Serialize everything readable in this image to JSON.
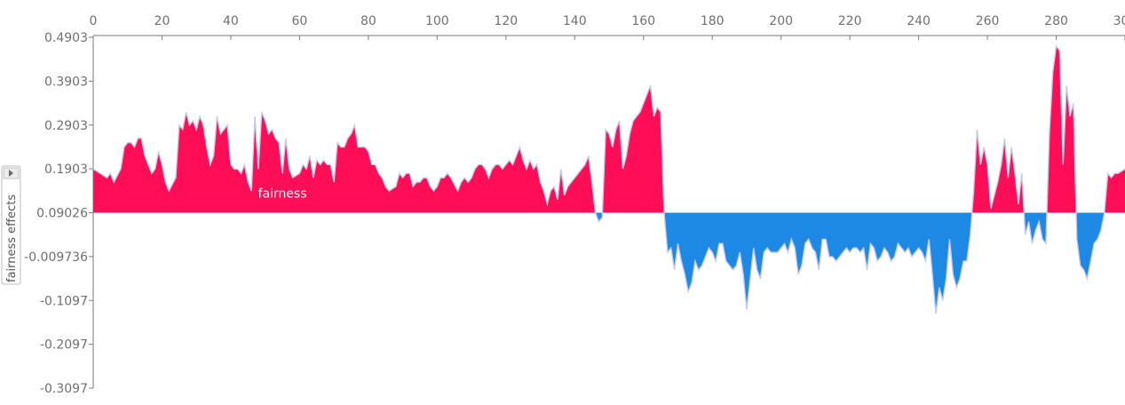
{
  "chart_data": {
    "type": "area",
    "ylabel": "fairness effects",
    "base_value": 0.09026,
    "xlim": [
      0,
      300
    ],
    "ylim": [
      -0.3097,
      0.4903
    ],
    "x_ticks": [
      0,
      20,
      40,
      60,
      80,
      100,
      120,
      140,
      160,
      180,
      200,
      220,
      240,
      260,
      280,
      300
    ],
    "x_tick_labels": [
      "0",
      "20",
      "40",
      "60",
      "80",
      "100",
      "120",
      "140",
      "160",
      "180",
      "200",
      "220",
      "240",
      "260",
      "280",
      "300"
    ],
    "y_ticks": [
      0.4903,
      0.3903,
      0.2903,
      0.1903,
      0.09026,
      -0.009736,
      -0.1097,
      -0.2097,
      -0.3097
    ],
    "y_tick_labels": [
      "0.4903",
      "0.3903",
      "0.2903",
      "0.1903",
      "0.09026",
      "-0.009736",
      "-0.1097",
      "-0.2097",
      "-0.3097"
    ],
    "series": [
      {
        "name": "fairness",
        "colors": {
          "positive": "#ff0d57",
          "negative": "#1e88e5",
          "outline": "#c7cbe8"
        },
        "points": [
          [
            0,
            0.19
          ],
          [
            2,
            0.18
          ],
          [
            4,
            0.17
          ],
          [
            5,
            0.18
          ],
          [
            6,
            0.16
          ],
          [
            8,
            0.19
          ],
          [
            9,
            0.24
          ],
          [
            10,
            0.25
          ],
          [
            11,
            0.25
          ],
          [
            12,
            0.24
          ],
          [
            13,
            0.26
          ],
          [
            14,
            0.26
          ],
          [
            15,
            0.22
          ],
          [
            16,
            0.2
          ],
          [
            17,
            0.18
          ],
          [
            18,
            0.19
          ],
          [
            19,
            0.23
          ],
          [
            20,
            0.2
          ],
          [
            21,
            0.16
          ],
          [
            22,
            0.14
          ],
          [
            24,
            0.17
          ],
          [
            25,
            0.29
          ],
          [
            26,
            0.28
          ],
          [
            27,
            0.32
          ],
          [
            28,
            0.29
          ],
          [
            29,
            0.3
          ],
          [
            30,
            0.28
          ],
          [
            31,
            0.31
          ],
          [
            32,
            0.29
          ],
          [
            33,
            0.24
          ],
          [
            34,
            0.2
          ],
          [
            35,
            0.22
          ],
          [
            36,
            0.31
          ],
          [
            37,
            0.27
          ],
          [
            38,
            0.28
          ],
          [
            39,
            0.29
          ],
          [
            40,
            0.2
          ],
          [
            41,
            0.19
          ],
          [
            42,
            0.19
          ],
          [
            43,
            0.18
          ],
          [
            44,
            0.2
          ],
          [
            45,
            0.16
          ],
          [
            46,
            0.14
          ],
          [
            47,
            0.31
          ],
          [
            48,
            0.19
          ],
          [
            49,
            0.32
          ],
          [
            50,
            0.3
          ],
          [
            51,
            0.27
          ],
          [
            52,
            0.28
          ],
          [
            53,
            0.26
          ],
          [
            54,
            0.25
          ],
          [
            55,
            0.18
          ],
          [
            56,
            0.26
          ],
          [
            57,
            0.19
          ],
          [
            58,
            0.17
          ],
          [
            60,
            0.18
          ],
          [
            61,
            0.2
          ],
          [
            62,
            0.19
          ],
          [
            63,
            0.22
          ],
          [
            64,
            0.17
          ],
          [
            65,
            0.21
          ],
          [
            66,
            0.2
          ],
          [
            67,
            0.21
          ],
          [
            68,
            0.2
          ],
          [
            69,
            0.2
          ],
          [
            70,
            0.16
          ],
          [
            71,
            0.25
          ],
          [
            72,
            0.24
          ],
          [
            73,
            0.24
          ],
          [
            74,
            0.26
          ],
          [
            75,
            0.27
          ],
          [
            76,
            0.29
          ],
          [
            77,
            0.24
          ],
          [
            78,
            0.24
          ],
          [
            79,
            0.24
          ],
          [
            80,
            0.23
          ],
          [
            81,
            0.2
          ],
          [
            82,
            0.2
          ],
          [
            83,
            0.18
          ],
          [
            84,
            0.17
          ],
          [
            85,
            0.15
          ],
          [
            86,
            0.14
          ],
          [
            88,
            0.15
          ],
          [
            89,
            0.18
          ],
          [
            90,
            0.17
          ],
          [
            91,
            0.18
          ],
          [
            92,
            0.18
          ],
          [
            93,
            0.15
          ],
          [
            94,
            0.16
          ],
          [
            95,
            0.16
          ],
          [
            96,
            0.17
          ],
          [
            97,
            0.17
          ],
          [
            98,
            0.15
          ],
          [
            99,
            0.14
          ],
          [
            100,
            0.15
          ],
          [
            101,
            0.17
          ],
          [
            102,
            0.17
          ],
          [
            103,
            0.18
          ],
          [
            104,
            0.17
          ],
          [
            106,
            0.14
          ],
          [
            107,
            0.16
          ],
          [
            108,
            0.17
          ],
          [
            109,
            0.16
          ],
          [
            110,
            0.17
          ],
          [
            111,
            0.19
          ],
          [
            112,
            0.2
          ],
          [
            113,
            0.2
          ],
          [
            114,
            0.19
          ],
          [
            115,
            0.17
          ],
          [
            116,
            0.19
          ],
          [
            117,
            0.2
          ],
          [
            118,
            0.2
          ],
          [
            119,
            0.19
          ],
          [
            120,
            0.2
          ],
          [
            121,
            0.21
          ],
          [
            122,
            0.2
          ],
          [
            123,
            0.22
          ],
          [
            124,
            0.24
          ],
          [
            125,
            0.21
          ],
          [
            126,
            0.19
          ],
          [
            127,
            0.21
          ],
          [
            128,
            0.19
          ],
          [
            129,
            0.2
          ],
          [
            130,
            0.16
          ],
          [
            131,
            0.14
          ],
          [
            132,
            0.11
          ],
          [
            133,
            0.14
          ],
          [
            134,
            0.15
          ],
          [
            135,
            0.12
          ],
          [
            136,
            0.19
          ],
          [
            137,
            0.13
          ],
          [
            138,
            0.15
          ],
          [
            139,
            0.16
          ],
          [
            141,
            0.18
          ],
          [
            142,
            0.19
          ],
          [
            143,
            0.2
          ],
          [
            144,
            0.22
          ],
          [
            145,
            0.16
          ],
          [
            146,
            0.09
          ],
          [
            147,
            0.07
          ],
          [
            148,
            0.08
          ],
          [
            149,
            0.28
          ],
          [
            150,
            0.27
          ],
          [
            151,
            0.24
          ],
          [
            152,
            0.28
          ],
          [
            153,
            0.3
          ],
          [
            154,
            0.19
          ],
          [
            155,
            0.22
          ],
          [
            156,
            0.27
          ],
          [
            157,
            0.3
          ],
          [
            158,
            0.31
          ],
          [
            159,
            0.32
          ],
          [
            160,
            0.34
          ],
          [
            161,
            0.36
          ],
          [
            162,
            0.38
          ],
          [
            163,
            0.31
          ],
          [
            164,
            0.33
          ],
          [
            165,
            0.32
          ],
          [
            166,
            0.09
          ],
          [
            167,
            0.0
          ],
          [
            168,
            0.01
          ],
          [
            169,
            -0.04
          ],
          [
            170,
            0.02
          ],
          [
            171,
            -0.02
          ],
          [
            172,
            -0.05
          ],
          [
            173,
            -0.09
          ],
          [
            174,
            -0.07
          ],
          [
            175,
            -0.02
          ],
          [
            176,
            -0.04
          ],
          [
            177,
            -0.03
          ],
          [
            178,
            -0.01
          ],
          [
            179,
            0.01
          ],
          [
            180,
            0.0
          ],
          [
            181,
            -0.02
          ],
          [
            182,
            0.02
          ],
          [
            183,
            0.02
          ],
          [
            184,
            -0.02
          ],
          [
            185,
            -0.03
          ],
          [
            186,
            -0.04
          ],
          [
            187,
            -0.03
          ],
          [
            188,
            0.0
          ],
          [
            189,
            -0.05
          ],
          [
            190,
            -0.13
          ],
          [
            191,
            -0.06
          ],
          [
            192,
            0.01
          ],
          [
            193,
            -0.04
          ],
          [
            194,
            -0.06
          ],
          [
            195,
            0.0
          ],
          [
            196,
            0.01
          ],
          [
            197,
            0.0
          ],
          [
            198,
            0.0
          ],
          [
            199,
            0.0
          ],
          [
            200,
            0.01
          ],
          [
            201,
            0.02
          ],
          [
            202,
            0.0
          ],
          [
            203,
            0.03
          ],
          [
            204,
            0.01
          ],
          [
            205,
            -0.05
          ],
          [
            206,
            -0.03
          ],
          [
            207,
            0.02
          ],
          [
            208,
            0.03
          ],
          [
            209,
            0.01
          ],
          [
            210,
            0.0
          ],
          [
            211,
            -0.04
          ],
          [
            212,
            0.03
          ],
          [
            213,
            0.03
          ],
          [
            214,
            -0.01
          ],
          [
            215,
            -0.01
          ],
          [
            216,
            -0.02
          ],
          [
            217,
            -0.01
          ],
          [
            218,
            0.0
          ],
          [
            219,
            0.01
          ],
          [
            220,
            0.0
          ],
          [
            221,
            0.01
          ],
          [
            222,
            0.01
          ],
          [
            223,
            0.0
          ],
          [
            224,
            0.01
          ],
          [
            225,
            -0.04
          ],
          [
            226,
            0.02
          ],
          [
            227,
            0.01
          ],
          [
            228,
            -0.02
          ],
          [
            229,
            -0.01
          ],
          [
            230,
            0.01
          ],
          [
            231,
            0.0
          ],
          [
            232,
            -0.02
          ],
          [
            233,
            -0.01
          ],
          [
            234,
            0.02
          ],
          [
            235,
            0.01
          ],
          [
            236,
            0.0
          ],
          [
            237,
            0.01
          ],
          [
            238,
            -0.01
          ],
          [
            239,
            0.0
          ],
          [
            240,
            0.01
          ],
          [
            241,
            0.0
          ],
          [
            242,
            -0.02
          ],
          [
            243,
            0.03
          ],
          [
            244,
            -0.05
          ],
          [
            245,
            -0.14
          ],
          [
            246,
            -0.08
          ],
          [
            247,
            -0.11
          ],
          [
            248,
            -0.06
          ],
          [
            249,
            0.03
          ],
          [
            250,
            -0.05
          ],
          [
            251,
            -0.08
          ],
          [
            252,
            -0.06
          ],
          [
            253,
            -0.02
          ],
          [
            254,
            -0.02
          ],
          [
            255,
            0.04
          ],
          [
            256,
            0.14
          ],
          [
            257,
            0.28
          ],
          [
            258,
            0.2
          ],
          [
            259,
            0.24
          ],
          [
            260,
            0.2
          ],
          [
            261,
            0.1
          ],
          [
            262,
            0.13
          ],
          [
            263,
            0.16
          ],
          [
            264,
            0.2
          ],
          [
            265,
            0.26
          ],
          [
            266,
            0.17
          ],
          [
            267,
            0.24
          ],
          [
            268,
            0.18
          ],
          [
            269,
            0.11
          ],
          [
            270,
            0.18
          ],
          [
            271,
            0.04
          ],
          [
            272,
            0.07
          ],
          [
            273,
            0.02
          ],
          [
            274,
            0.05
          ],
          [
            275,
            0.07
          ],
          [
            276,
            0.03
          ],
          [
            277,
            0.02
          ],
          [
            278,
            0.27
          ],
          [
            279,
            0.41
          ],
          [
            280,
            0.47
          ],
          [
            281,
            0.46
          ],
          [
            282,
            0.2
          ],
          [
            283,
            0.38
          ],
          [
            284,
            0.31
          ],
          [
            285,
            0.34
          ],
          [
            286,
            0.03
          ],
          [
            287,
            -0.03
          ],
          [
            288,
            -0.04
          ],
          [
            289,
            -0.06
          ],
          [
            290,
            -0.02
          ],
          [
            291,
            0.02
          ],
          [
            292,
            0.03
          ],
          [
            293,
            0.05
          ],
          [
            294,
            0.09
          ],
          [
            295,
            0.18
          ],
          [
            296,
            0.17
          ],
          [
            297,
            0.18
          ],
          [
            298,
            0.18
          ],
          [
            300,
            0.19
          ]
        ]
      }
    ],
    "annotations": [
      {
        "text": "fairness",
        "x": 55,
        "y": 0.125
      }
    ],
    "grid": false,
    "legend": "none"
  },
  "ui": {
    "ylabel_toggle_icon": "triangle-right-icon"
  }
}
